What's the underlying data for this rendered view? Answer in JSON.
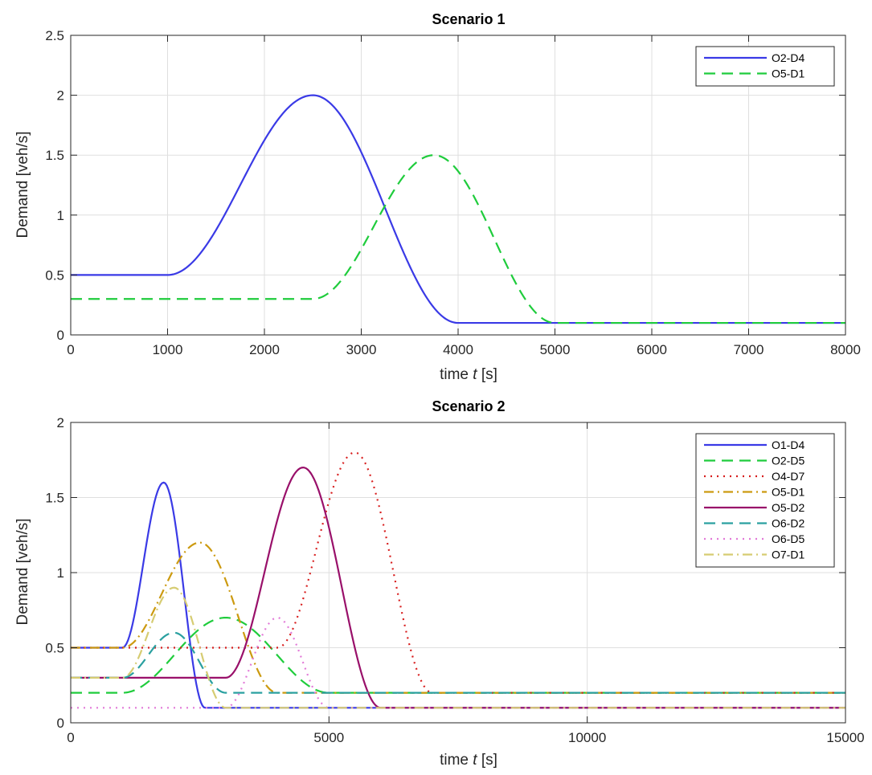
{
  "chart_data": [
    {
      "type": "line",
      "title": "Scenario 1",
      "xlabel_prefix": "time ",
      "xlabel_var": "t",
      "xlabel_suffix": " [s]",
      "ylabel": "Demand [veh/s]",
      "xlim": [
        0,
        8000
      ],
      "ylim": [
        0,
        2.5
      ],
      "xticks": [
        0,
        1000,
        2000,
        3000,
        4000,
        5000,
        6000,
        7000,
        8000
      ],
      "yticks": [
        0,
        0.5,
        1,
        1.5,
        2,
        2.5
      ],
      "ytick_labels": [
        "0",
        "0.5",
        "1",
        "1.5",
        "2",
        "2.5"
      ],
      "grid": true,
      "legend_position": "top-right",
      "series": [
        {
          "name": "O2-D4",
          "color": "#3a3ae6",
          "style": "solid",
          "base": 0.5,
          "start": 1000,
          "peak_time": 2500,
          "peak": 2.0,
          "end": 4000,
          "final": 0.1
        },
        {
          "name": "O5-D1",
          "color": "#1fcc3c",
          "style": "dashed",
          "base": 0.3,
          "start": 2500,
          "peak_time": 3750,
          "peak": 1.5,
          "end": 5000,
          "final": 0.1
        }
      ]
    },
    {
      "type": "line",
      "title": "Scenario 2",
      "xlabel_prefix": "time ",
      "xlabel_var": "t",
      "xlabel_suffix": " [s]",
      "ylabel": "Demand [veh/s]",
      "xlim": [
        0,
        15000
      ],
      "ylim": [
        0,
        2
      ],
      "xticks": [
        0,
        5000,
        10000,
        15000
      ],
      "yticks": [
        0,
        0.5,
        1,
        1.5,
        2
      ],
      "ytick_labels": [
        "0",
        "0.5",
        "1",
        "1.5",
        "2"
      ],
      "grid": true,
      "legend_position": "top-right",
      "series": [
        {
          "name": "O1-D4",
          "color": "#3a3ae6",
          "style": "solid",
          "base": 0.5,
          "start": 1000,
          "peak_time": 1800,
          "peak": 1.6,
          "end": 2600,
          "final": 0.1
        },
        {
          "name": "O2-D5",
          "color": "#1fcc3c",
          "style": "dashed",
          "base": 0.2,
          "start": 1000,
          "peak_time": 3000,
          "peak": 0.7,
          "end": 5000,
          "final": 0.2
        },
        {
          "name": "O4-D7",
          "color": "#d81e1e",
          "style": "dotted",
          "base": 0.5,
          "start": 4000,
          "peak_time": 5500,
          "peak": 1.8,
          "end": 7000,
          "final": 0.2
        },
        {
          "name": "O5-D1",
          "color": "#cc9a10",
          "style": "dashdot",
          "base": 0.5,
          "start": 1000,
          "peak_time": 2500,
          "peak": 1.2,
          "end": 4000,
          "final": 0.2
        },
        {
          "name": "O5-D2",
          "color": "#99106a",
          "style": "solid",
          "base": 0.3,
          "start": 3000,
          "peak_time": 4500,
          "peak": 1.7,
          "end": 6000,
          "final": 0.1
        },
        {
          "name": "O6-D2",
          "color": "#2aa0a0",
          "style": "dashed",
          "base": 0.3,
          "start": 1000,
          "peak_time": 2000,
          "peak": 0.6,
          "end": 3000,
          "final": 0.2
        },
        {
          "name": "O6-D5",
          "color": "#e27ad8",
          "style": "dotted",
          "base": 0.1,
          "start": 3000,
          "peak_time": 4000,
          "peak": 0.7,
          "end": 5000,
          "final": 0.1
        },
        {
          "name": "O7-D1",
          "color": "#d6cc72",
          "style": "dashdot",
          "base": 0.3,
          "start": 1000,
          "peak_time": 2000,
          "peak": 0.9,
          "end": 3000,
          "final": 0.1
        }
      ]
    }
  ]
}
